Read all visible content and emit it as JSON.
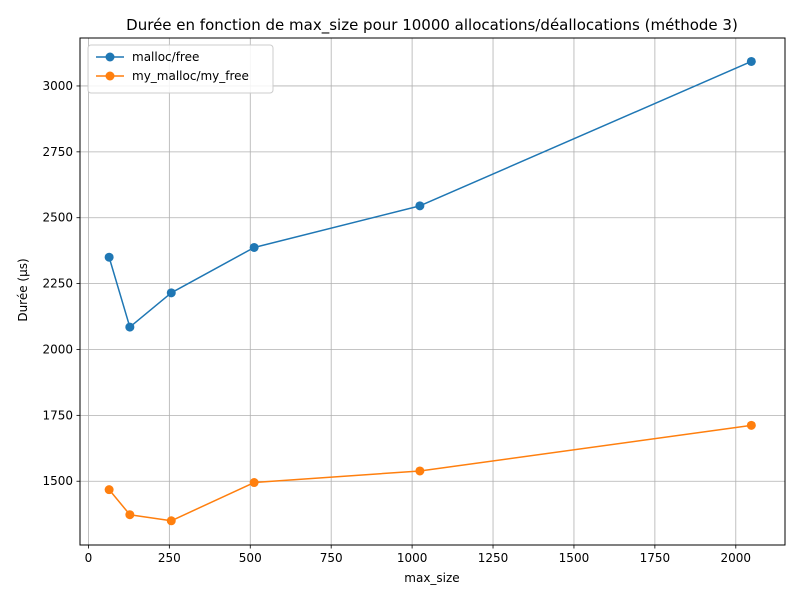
{
  "chart_data": {
    "type": "line",
    "title": "Durée en fonction de max_size pour 10000 allocations/déallocations (méthode 3)",
    "xlabel": "max_size",
    "ylabel": "Durée (µs)",
    "xlim": [
      -26,
      2152
    ],
    "ylim": [
      1258,
      3182
    ],
    "xticks": [
      0,
      250,
      500,
      750,
      1000,
      1250,
      1500,
      1750,
      2000
    ],
    "yticks": [
      1500,
      1750,
      2000,
      2250,
      2500,
      2750,
      3000
    ],
    "grid": true,
    "legend_position": "top-left",
    "x": [
      64,
      128,
      256,
      512,
      1024,
      2048
    ],
    "series": [
      {
        "name": "malloc/free",
        "color": "#1f77b4",
        "values": [
          2350,
          2085,
          2215,
          2387,
          2545,
          3093
        ]
      },
      {
        "name": "my_malloc/my_free",
        "color": "#ff7f0e",
        "values": [
          1468,
          1373,
          1350,
          1495,
          1539,
          1712
        ]
      }
    ]
  }
}
